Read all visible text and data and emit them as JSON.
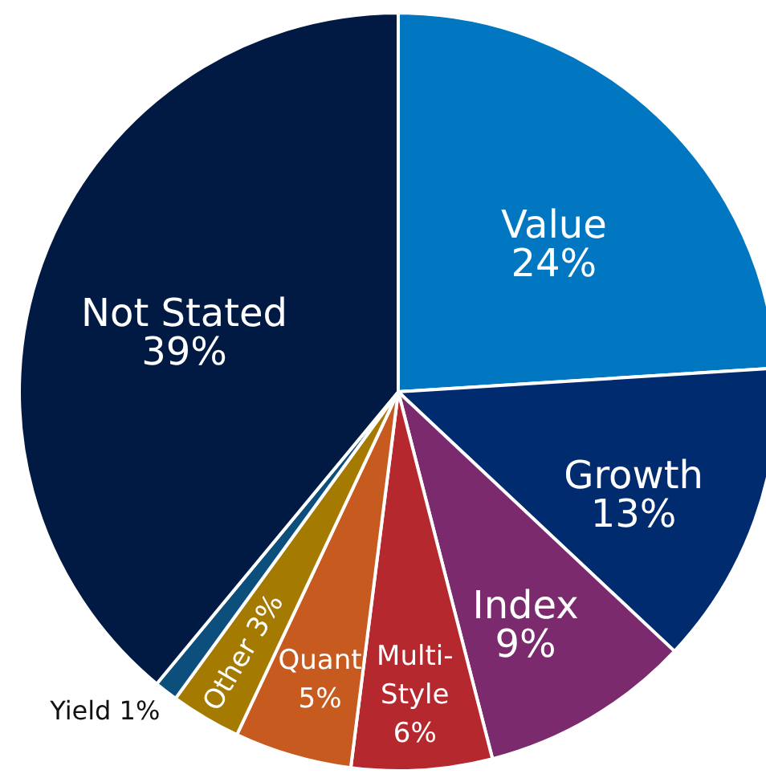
{
  "chart_data": {
    "type": "pie",
    "value_labels": [
      "24%",
      "13%",
      "9%",
      "6%",
      "5%",
      "3%",
      "1%",
      "39%"
    ],
    "categories": [
      "Value",
      "Growth",
      "Index",
      "Multi-Style",
      "Quant",
      "Other",
      "Yield",
      "Not Stated"
    ],
    "values": [
      24,
      13,
      9,
      6,
      5,
      3,
      1,
      39
    ],
    "colors": [
      "#0077c0",
      "#002b6e",
      "#7b2a6e",
      "#b5282e",
      "#c75a1e",
      "#a57a00",
      "#0d4f7c",
      "#001a44"
    ]
  }
}
